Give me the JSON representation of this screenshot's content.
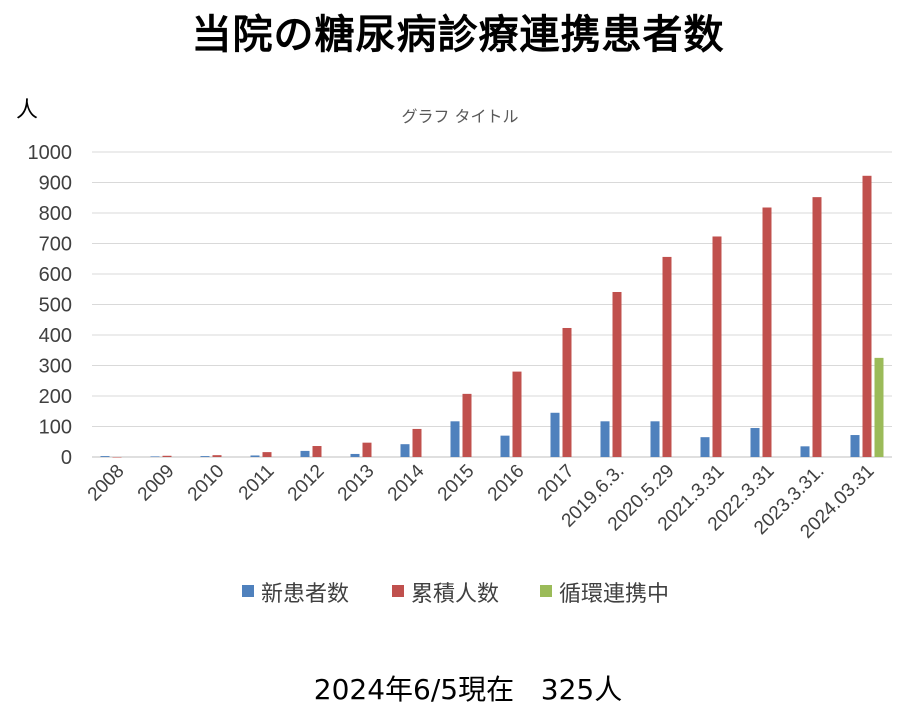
{
  "page": {
    "main_title": "当院の糖尿病診療連携患者数",
    "unit_label": "人",
    "footer_note": "2024年6/5現在   325人"
  },
  "chart_data": {
    "type": "bar",
    "title": "グラフ タイトル",
    "xlabel": "",
    "ylabel": "人",
    "ylim": [
      0,
      1000
    ],
    "yticks": [
      0,
      100,
      200,
      300,
      400,
      500,
      600,
      700,
      800,
      900,
      1000
    ],
    "grid": true,
    "legend": "bottom",
    "categories": [
      "2008",
      "2009",
      "2010",
      "2011",
      "2012",
      "2013",
      "2014",
      "2015",
      "2016",
      "2017",
      "2019.6.3.",
      "2020.5.29",
      "2021.3.31",
      "2022.3.31",
      "2023.3.31.",
      "2024.03.31"
    ],
    "series": [
      {
        "name": "新患者数",
        "color": "#4F81BD",
        "values": [
          3,
          2,
          3,
          5,
          20,
          10,
          42,
          117,
          70,
          145,
          117,
          117,
          65,
          95,
          35,
          72
        ]
      },
      {
        "name": "累積人数",
        "color": "#C0504D",
        "values": [
          0,
          4,
          6,
          16,
          36,
          47,
          92,
          207,
          280,
          423,
          541,
          656,
          723,
          818,
          852,
          922
        ]
      },
      {
        "name": "循環連携中",
        "color": "#9BBB59",
        "values": [
          null,
          null,
          null,
          null,
          null,
          null,
          null,
          null,
          null,
          null,
          null,
          null,
          null,
          null,
          null,
          325
        ]
      }
    ]
  }
}
